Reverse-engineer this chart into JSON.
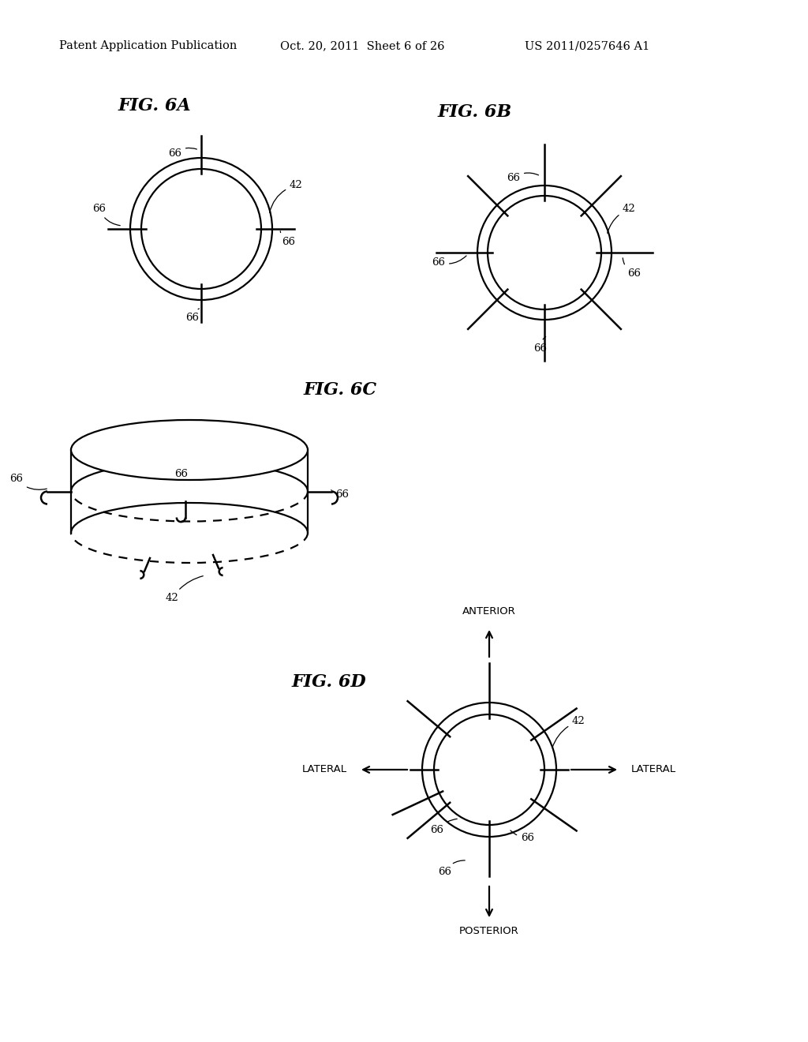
{
  "bg_color": "#ffffff",
  "header_text": "Patent Application Publication",
  "header_date": "Oct. 20, 2011  Sheet 6 of 26",
  "header_patent": "US 2011/0257646 A1",
  "fig6a_title": "FIG. 6A",
  "fig6b_title": "FIG. 6B",
  "fig6c_title": "FIG. 6C",
  "fig6d_title": "FIG. 6D",
  "anterior": "ANTERIOR",
  "posterior": "POSTERIOR",
  "lateral": "LATERAL"
}
